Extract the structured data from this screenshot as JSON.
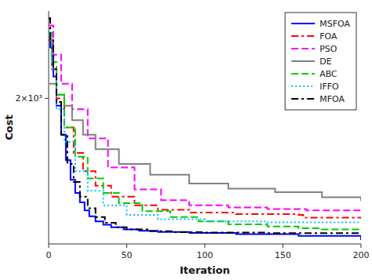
{
  "chart_data": {
    "type": "step",
    "xlabel": "Iteration",
    "ylabel": "Cost",
    "xlim": [
      0,
      200
    ],
    "ylim": [
      0,
      3200
    ],
    "xticks": [
      0,
      50,
      100,
      150,
      200
    ],
    "yticks": [
      {
        "value": 2000,
        "label": "2×10³"
      }
    ],
    "grid": false,
    "legend": "upper right",
    "series": [
      {
        "name": "MSFOA",
        "color": "#0000FF",
        "line_style": "solid",
        "x": [
          0,
          1,
          3,
          5,
          8,
          11,
          14,
          17,
          20,
          23,
          26,
          30,
          35,
          40,
          48,
          58,
          70,
          90,
          120,
          160,
          200
        ],
        "values": [
          2900,
          2700,
          2300,
          1900,
          1500,
          1150,
          880,
          700,
          570,
          460,
          380,
          310,
          265,
          230,
          200,
          180,
          165,
          150,
          135,
          110,
          55
        ]
      },
      {
        "name": "FOA",
        "color": "#FF0000",
        "line_style": "dashdot",
        "x": [
          0,
          2,
          5,
          10,
          16,
          22,
          30,
          40,
          55,
          70,
          90,
          120,
          160,
          163,
          200
        ],
        "values": [
          2800,
          2400,
          2000,
          1600,
          1250,
          1000,
          800,
          650,
          530,
          470,
          430,
          410,
          400,
          360,
          355
        ]
      },
      {
        "name": "PSO",
        "color": "#FF00FF",
        "line_style": "dashed",
        "x": [
          0,
          3,
          8,
          15,
          25,
          38,
          55,
          72,
          90,
          115,
          140,
          165,
          200
        ],
        "values": [
          3000,
          2600,
          2200,
          1850,
          1450,
          1050,
          750,
          600,
          530,
          500,
          480,
          460,
          450
        ]
      },
      {
        "name": "DE",
        "color": "#808080",
        "line_style": "solid",
        "x": [
          0,
          5,
          10,
          15,
          22,
          30,
          45,
          65,
          90,
          115,
          145,
          175,
          200
        ],
        "values": [
          2200,
          2050,
          1900,
          1700,
          1500,
          1300,
          1100,
          950,
          830,
          760,
          710,
          640,
          590
        ]
      },
      {
        "name": "ABC",
        "color": "#00CC00",
        "line_style": "dashed",
        "x": [
          0,
          2,
          5,
          10,
          17,
          25,
          35,
          45,
          60,
          78,
          96,
          115,
          140,
          160,
          175,
          200
        ],
        "values": [
          2900,
          2500,
          2050,
          1600,
          1200,
          900,
          700,
          560,
          450,
          370,
          310,
          270,
          240,
          215,
          200,
          195
        ]
      },
      {
        "name": "IFFO",
        "color": "#00BFFF",
        "line_style": "dotted",
        "x": [
          0,
          2,
          5,
          10,
          17,
          25,
          35,
          50,
          70,
          100,
          140,
          200
        ],
        "values": [
          2900,
          2400,
          1850,
          1400,
          1000,
          730,
          530,
          400,
          340,
          310,
          295,
          290
        ]
      },
      {
        "name": "MFOA",
        "color": "#000000",
        "line_style": "dashdot",
        "x": [
          0,
          1,
          3,
          5,
          8,
          12,
          16,
          20,
          25,
          30,
          36,
          43,
          50,
          65,
          80,
          100,
          140,
          200
        ],
        "values": [
          3100,
          2800,
          2400,
          1950,
          1500,
          1100,
          850,
          650,
          490,
          370,
          290,
          230,
          200,
          175,
          162,
          155,
          148,
          145
        ]
      }
    ]
  }
}
